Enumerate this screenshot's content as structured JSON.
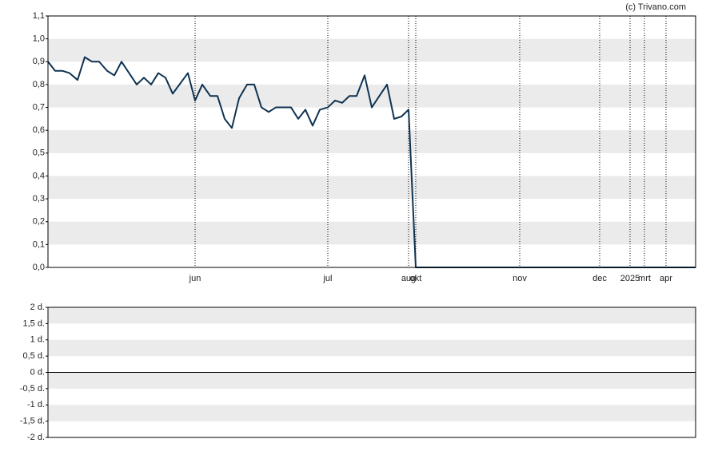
{
  "chart_data": [
    {
      "type": "line",
      "annotation": "(c) Trivano.com",
      "x": [
        0,
        1.8,
        3.6,
        5.4,
        7.4,
        9.2,
        11,
        12.8,
        14.8,
        16.6,
        18.4,
        22.2,
        24,
        25.8,
        27.6,
        29.4,
        31.2,
        35,
        36.8,
        38.6,
        40.6,
        42.4,
        44.2,
        46,
        47.8,
        49.8,
        51.6,
        53.4,
        55.2,
        57,
        58.8,
        60.8,
        62.6,
        64.4,
        66.2,
        68,
        70,
        71.8,
        73.6,
        75.4,
        77.2,
        79.2,
        81,
        84.8,
        86.6,
        88.4,
        90.2,
        92,
        162
      ],
      "series": [
        {
          "color": "#0f3352",
          "values": [
            0.9,
            0.86,
            0.86,
            0.85,
            0.82,
            0.92,
            0.9,
            0.9,
            0.86,
            0.84,
            0.9,
            0.8,
            0.83,
            0.8,
            0.85,
            0.83,
            0.76,
            0.85,
            0.73,
            0.8,
            0.75,
            0.75,
            0.65,
            0.61,
            0.74,
            0.8,
            0.8,
            0.7,
            0.68,
            0.7,
            0.7,
            0.7,
            0.65,
            0.69,
            0.62,
            0.69,
            0.7,
            0.73,
            0.72,
            0.75,
            0.75,
            0.84,
            0.7,
            0.8,
            0.65,
            0.66,
            0.69,
            0.0,
            0.0
          ]
        }
      ],
      "xlim": [
        0,
        162
      ],
      "xticks": [
        {
          "value": 36.8,
          "label": "jun"
        },
        {
          "value": 70,
          "label": "jul"
        },
        {
          "value": 90.2,
          "label": "aug"
        },
        {
          "value": 92,
          "label": "okt"
        },
        {
          "value": 118,
          "label": "nov"
        },
        {
          "value": 138,
          "label": "dec"
        },
        {
          "value": 145.6,
          "label": "2025"
        },
        {
          "value": 149.2,
          "label": "mrt"
        },
        {
          "value": 154.6,
          "label": "apr"
        }
      ],
      "ylim": [
        0,
        1.1
      ],
      "yticks": [
        {
          "value": 0,
          "label": "0,0"
        },
        {
          "value": 0.1,
          "label": "0,1"
        },
        {
          "value": 0.2,
          "label": "0,2"
        },
        {
          "value": 0.3,
          "label": "0,3"
        },
        {
          "value": 0.4,
          "label": "0,4"
        },
        {
          "value": 0.5,
          "label": "0,5"
        },
        {
          "value": 0.6,
          "label": "0,6"
        },
        {
          "value": 0.7,
          "label": "0,7"
        },
        {
          "value": 0.8,
          "label": "0,8"
        },
        {
          "value": 0.9,
          "label": "0,9"
        },
        {
          "value": 1.0,
          "label": "1,0"
        },
        {
          "value": 1.1,
          "label": "1,1"
        }
      ],
      "grid": "bands"
    },
    {
      "type": "volume",
      "ylim": [
        -2,
        2
      ],
      "yticks": [
        {
          "value": 2,
          "label": "2 d."
        },
        {
          "value": 1.5,
          "label": "1,5 d."
        },
        {
          "value": 1,
          "label": "1 d."
        },
        {
          "value": 0.5,
          "label": "0,5 d."
        },
        {
          "value": 0,
          "label": "0 d."
        },
        {
          "value": -0.5,
          "label": "-0,5 d."
        },
        {
          "value": -1,
          "label": "-1 d."
        },
        {
          "value": -1.5,
          "label": "-1,5 d."
        },
        {
          "value": -2,
          "label": "-2 d."
        }
      ],
      "grid": "bands"
    }
  ]
}
